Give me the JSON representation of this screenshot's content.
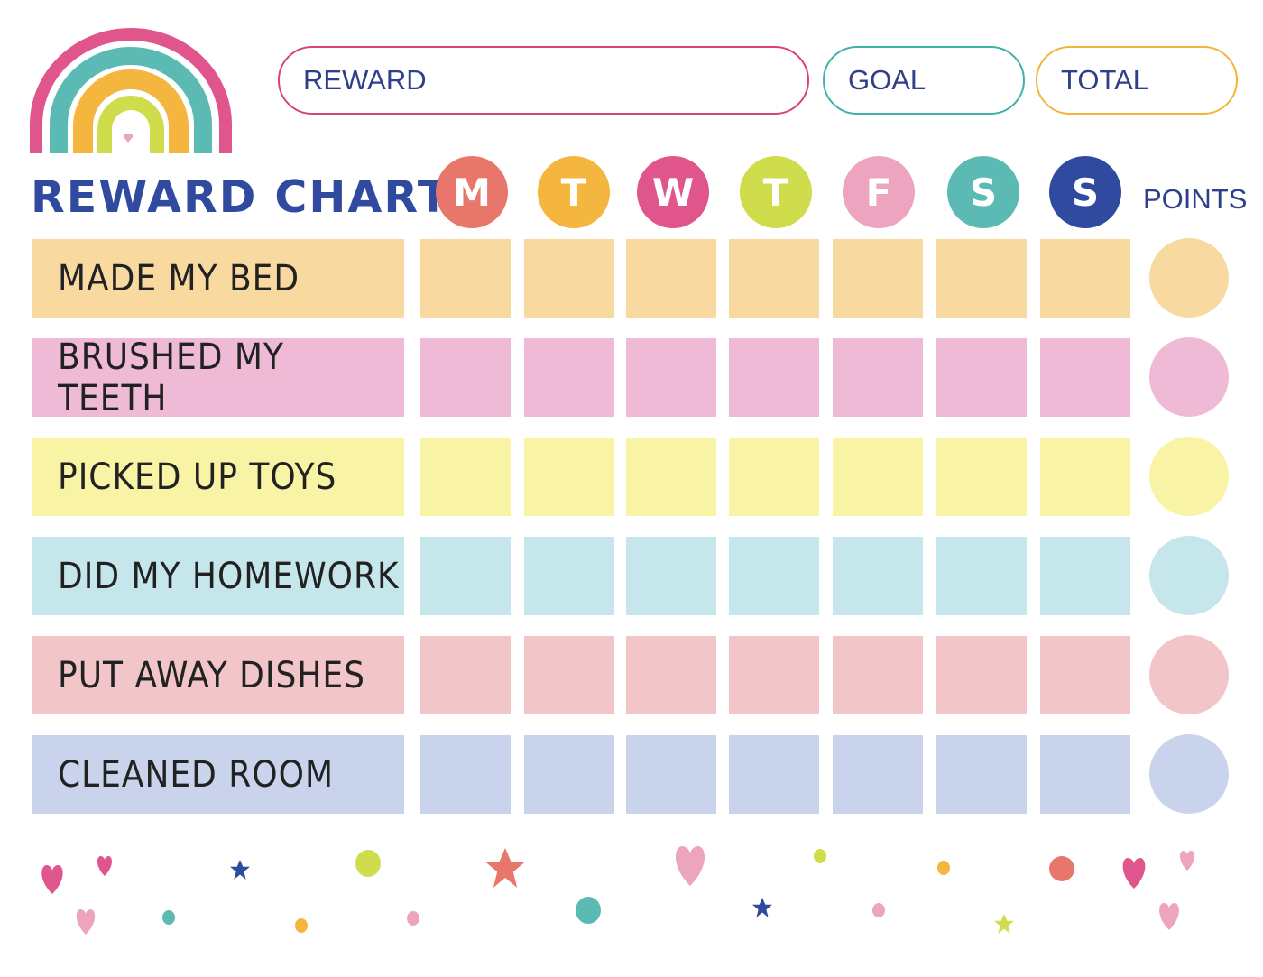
{
  "header": {
    "title": "REWARD CHART",
    "reward_label": "REWARD",
    "goal_label": "GOAL",
    "total_label": "TOTAL",
    "points_label": "POINTS"
  },
  "days": [
    {
      "letter": "M",
      "color": "#e8766b"
    },
    {
      "letter": "T",
      "color": "#f4b63f"
    },
    {
      "letter": "W",
      "color": "#e0558c"
    },
    {
      "letter": "T",
      "color": "#cfdc4b"
    },
    {
      "letter": "F",
      "color": "#eda4bf"
    },
    {
      "letter": "S",
      "color": "#5bbab4"
    },
    {
      "letter": "S",
      "color": "#2f4a9e"
    }
  ],
  "tasks": [
    {
      "label": "MADE MY BED",
      "color": "#f8d9a0"
    },
    {
      "label": "BRUSHED MY TEETH",
      "color": "#efbad5"
    },
    {
      "label": "PICKED UP TOYS",
      "color": "#f8f3a5"
    },
    {
      "label": "DID MY HOMEWORK",
      "color": "#c5e6ea"
    },
    {
      "label": "PUT AWAY DISHES",
      "color": "#f2c5c8"
    },
    {
      "label": "CLEANED ROOM",
      "color": "#c9d4ec"
    }
  ],
  "colors": {
    "title": "#2f4a9e",
    "reward_border": "#d8427f",
    "goal_border": "#3fb0aa",
    "total_border": "#f2b53a"
  }
}
